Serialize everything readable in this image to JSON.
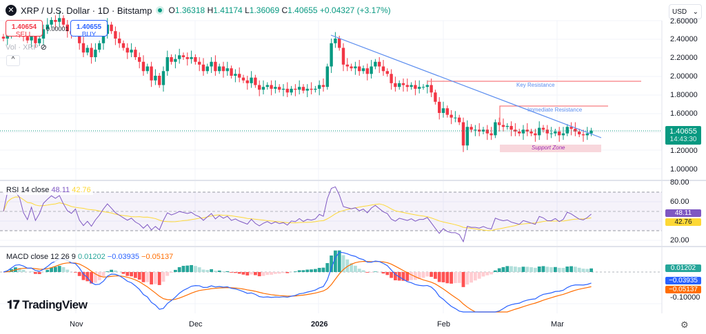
{
  "header": {
    "symbol_icon": "x-logo",
    "title": "XRP / U.S. Dollar · 1D · Bitstamp",
    "status": "market-open-dot",
    "open_label": "O",
    "open": "1.36318",
    "high_label": "H",
    "high": "1.41174",
    "low_label": "L",
    "low": "1.36069",
    "close_label": "C",
    "close": "1.40655",
    "change": "+0.04327 (+3.17%)"
  },
  "trade": {
    "sell_price": "1.40654",
    "sell_label": "SELL",
    "buy_price": "1.40655",
    "buy_label": "BUY",
    "spread": "0.00001"
  },
  "volume_legend": "Vol · XRP",
  "currency": "USD",
  "collapse_icon": "chevron-up-icon",
  "price_axis": {
    "ticks": [
      "2.60000",
      "2.40000",
      "2.20000",
      "2.00000",
      "1.80000",
      "1.60000",
      "1.20000",
      "1.00000"
    ],
    "last_price": "1.40655",
    "countdown": "14:43:30"
  },
  "rsi": {
    "title": "RSI 14 close",
    "value": "48.11",
    "ma": "42.76",
    "ticks": [
      "80.00",
      "60.00",
      "20.00"
    ]
  },
  "macd": {
    "title": "MACD close 12 26 9",
    "hist": "0.01202",
    "macd": "−0.03935",
    "signal": "−0.05137",
    "tick": "-0.10000"
  },
  "time_axis": [
    "Nov",
    "Dec",
    "2026",
    "Feb",
    "Mar"
  ],
  "annotations": {
    "key_resistance": "Key Resistance",
    "immediate_resistance": "Immediate Resistance",
    "support_zone": "Support Zone"
  },
  "brand": "TradingView",
  "colors": {
    "up": "#089981",
    "down": "#f23645",
    "trend": "#5b8def",
    "resistance": "#f77c80",
    "support_fill": "#f8d7dc",
    "support_text": "#9c27b0",
    "rsi": "#7e57c2",
    "rsi_ma": "#fdd835",
    "macd": "#2962ff",
    "signal": "#ff6d00"
  },
  "chart_data": {
    "type": "candlestick",
    "ylim": [
      1.0,
      2.6
    ],
    "closes": [
      2.4,
      2.45,
      2.52,
      2.55,
      2.48,
      2.42,
      2.38,
      2.45,
      2.35,
      2.4,
      2.5,
      2.55,
      2.6,
      2.58,
      2.62,
      2.55,
      2.48,
      2.45,
      2.5,
      2.35,
      2.25,
      2.3,
      2.2,
      2.28,
      2.35,
      2.45,
      2.55,
      2.48,
      2.4,
      2.35,
      2.3,
      2.25,
      2.28,
      2.2,
      2.15,
      2.05,
      2.1,
      1.95,
      2.0,
      1.9,
      2.05,
      2.2,
      2.15,
      2.18,
      2.22,
      2.2,
      2.18,
      2.2,
      2.15,
      2.12,
      2.05,
      2.1,
      2.15,
      2.05,
      2.1,
      2.05,
      2.08,
      2.0,
      2.02,
      1.98,
      1.95,
      1.92,
      1.98,
      1.9,
      1.85,
      1.88,
      1.9,
      1.86,
      1.88,
      1.85,
      1.86,
      1.82,
      1.86,
      1.85,
      1.88,
      1.84,
      1.86,
      1.85,
      1.86,
      1.9,
      1.88,
      2.1,
      2.35,
      2.4,
      2.3,
      2.12,
      2.1,
      2.08,
      2.1,
      2.05,
      2.08,
      2.02,
      2.1,
      2.15,
      2.1,
      2.05,
      2.02,
      1.92,
      1.88,
      1.92,
      1.9,
      1.88,
      1.9,
      1.86,
      1.88,
      1.88,
      1.9,
      1.82,
      1.72,
      1.6,
      1.65,
      1.58,
      1.55,
      1.55,
      1.5,
      1.25,
      1.45,
      1.42,
      1.42,
      1.4,
      1.42,
      1.38,
      1.36,
      1.5,
      1.47,
      1.45,
      1.46,
      1.42,
      1.4,
      1.38,
      1.42,
      1.4,
      1.38,
      1.36,
      1.44,
      1.42,
      1.38,
      1.38,
      1.4,
      1.36,
      1.38,
      1.45,
      1.43,
      1.4,
      1.37,
      1.36,
      1.38,
      1.41
    ],
    "key_resistance": 1.94,
    "immediate_resistance": 1.67,
    "support_zone": [
      1.2,
      1.28
    ]
  }
}
